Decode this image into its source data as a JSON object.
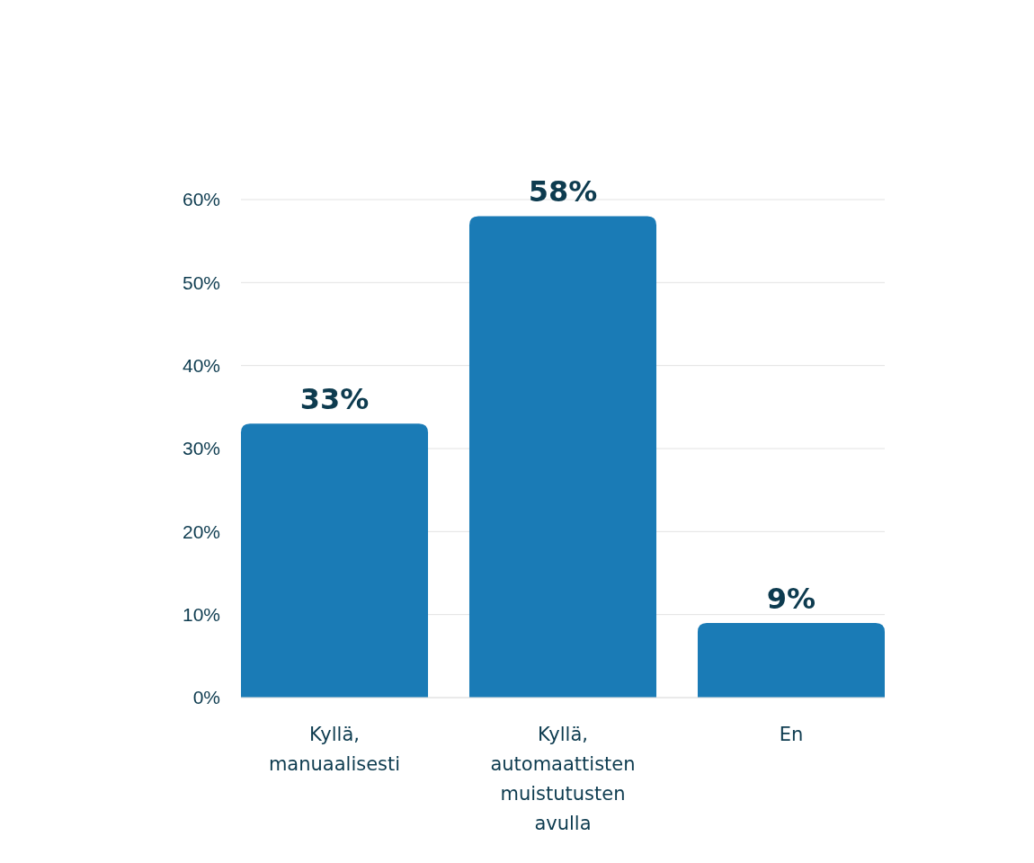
{
  "chart_data": {
    "type": "bar",
    "categories": [
      "Kyllä, manuaalisesti",
      "Kyllä, automaattisten muistutusten avulla",
      "En"
    ],
    "values": [
      33,
      58,
      9
    ],
    "color": "#1a7bb6",
    "value_labels": [
      "33%",
      "58%",
      "9%"
    ],
    "ylim": [
      0,
      60
    ],
    "yticks": [
      {
        "value": 0,
        "label": "0%"
      },
      {
        "value": 10,
        "label": "10%"
      },
      {
        "value": 20,
        "label": "20%"
      },
      {
        "value": 30,
        "label": "30%"
      },
      {
        "value": 40,
        "label": "40%"
      },
      {
        "value": 50,
        "label": "50%"
      },
      {
        "value": 60,
        "label": "60%"
      }
    ],
    "grid": "y"
  }
}
